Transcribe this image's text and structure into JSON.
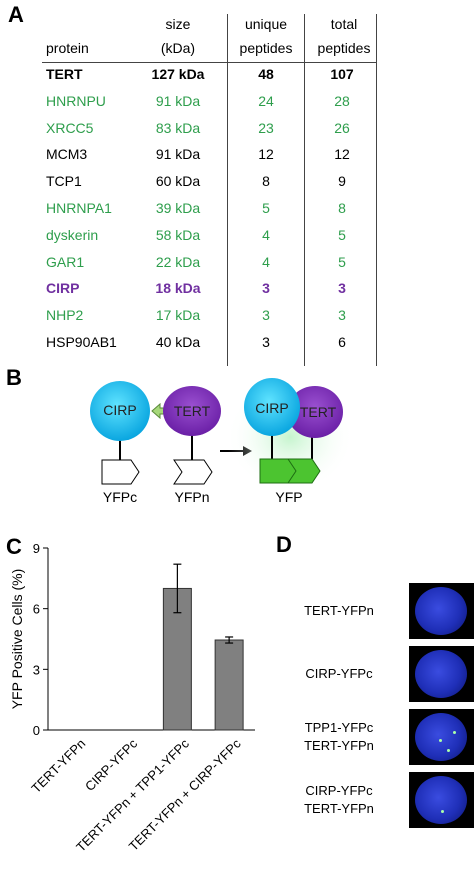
{
  "panels": {
    "a": "A",
    "b": "B",
    "c": "C",
    "d": "D"
  },
  "table": {
    "headers": {
      "size": [
        "size",
        "(kDa)"
      ],
      "unique": [
        "unique",
        "peptides"
      ],
      "total": [
        "total",
        "peptides"
      ],
      "protein": "protein"
    },
    "rows": [
      {
        "protein": "TERT",
        "size": "127 kDa",
        "unique": "48",
        "total": "107",
        "style": "bold"
      },
      {
        "protein": "HNRNPU",
        "size": "91 kDa",
        "unique": "24",
        "total": "28",
        "style": "green"
      },
      {
        "protein": "XRCC5",
        "size": "83 kDa",
        "unique": "23",
        "total": "26",
        "style": "green"
      },
      {
        "protein": "MCM3",
        "size": "91 kDa",
        "unique": "12",
        "total": "12",
        "style": "black"
      },
      {
        "protein": "TCP1",
        "size": "60 kDa",
        "unique": "8",
        "total": "9",
        "style": "black"
      },
      {
        "protein": "HNRNPA1",
        "size": "39 kDa",
        "unique": "5",
        "total": "8",
        "style": "green"
      },
      {
        "protein": "dyskerin",
        "size": "58 kDa",
        "unique": "4",
        "total": "5",
        "style": "green"
      },
      {
        "protein": "GAR1",
        "size": "22 kDa",
        "unique": "4",
        "total": "5",
        "style": "green"
      },
      {
        "protein": "CIRP",
        "size": "18 kDa",
        "unique": "3",
        "total": "3",
        "style": "purple"
      },
      {
        "protein": "NHP2",
        "size": "17 kDa",
        "unique": "3",
        "total": "3",
        "style": "green"
      },
      {
        "protein": "HSP90AB1",
        "size": "40 kDa",
        "unique": "3",
        "total": "6",
        "style": "black"
      }
    ]
  },
  "diagram": {
    "cirp": "CIRP",
    "tert": "TERT",
    "yfpc": "YFPc",
    "yfpn": "YFPn",
    "yfp": "YFP",
    "colors": {
      "cirp": "#1ab8e8",
      "tert": "#7a2fb0",
      "arrow": "#8cc63f",
      "yfp": "#4cc430"
    }
  },
  "chart_data": {
    "type": "bar",
    "ylabel": "YFP Positive Cells (%)",
    "ylim": [
      0,
      9
    ],
    "yticks": [
      "0",
      "3",
      "6",
      "9"
    ],
    "categories": [
      "TERT-YFPn",
      "CIRP-YFPc",
      "TERT-YFPn + TPP1-YFPc",
      "TERT-YFPn + CIRP-YFPc"
    ],
    "values": [
      0,
      0,
      7.0,
      4.45
    ],
    "errors": [
      0,
      0,
      1.2,
      0.15
    ],
    "bar_color": "#808080"
  },
  "panel_d": {
    "labels": [
      [
        "TERT-YFPn"
      ],
      [
        "CIRP-YFPc"
      ],
      [
        "TPP1-YFPc",
        "TERT-YFPn"
      ],
      [
        "CIRP-YFPc",
        "TERT-YFPn"
      ]
    ]
  }
}
